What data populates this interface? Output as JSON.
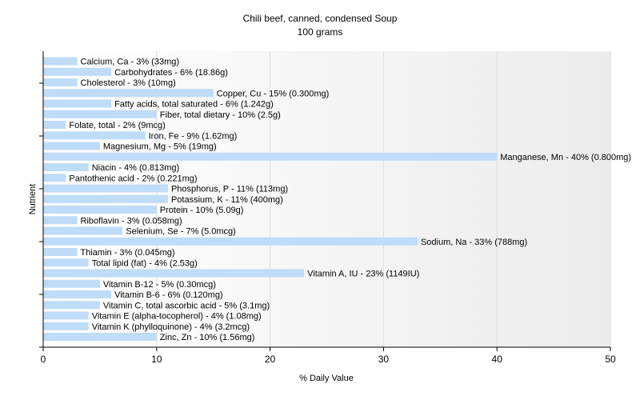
{
  "chart_data": {
    "type": "bar",
    "orientation": "horizontal",
    "title": "Chili beef, canned, condensed Soup",
    "subtitle": "100 grams",
    "xlabel": "% Daily Value",
    "ylabel": "Nutrient",
    "xlim": [
      0,
      50
    ],
    "xticks": [
      "0",
      "10",
      "20",
      "30",
      "40",
      "50"
    ],
    "grid": true,
    "bar_color": "#bfdcf8",
    "categories": [
      "Calcium, Ca",
      "Carbohydrates",
      "Cholesterol",
      "Copper, Cu",
      "Fatty acids, total saturated",
      "Fiber, total dietary",
      "Folate, total",
      "Iron, Fe",
      "Magnesium, Mg",
      "Manganese, Mn",
      "Niacin",
      "Pantothenic acid",
      "Phosphorus, P",
      "Potassium, K",
      "Protein",
      "Riboflavin",
      "Selenium, Se",
      "Sodium, Na",
      "Thiamin",
      "Total lipid (fat)",
      "Vitamin A, IU",
      "Vitamin B-12",
      "Vitamin B-6",
      "Vitamin C, total ascorbic acid",
      "Vitamin E (alpha-tocopherol)",
      "Vitamin K (phylloquinone)",
      "Zinc, Zn"
    ],
    "values": [
      3,
      6,
      3,
      15,
      6,
      10,
      2,
      9,
      5,
      40,
      4,
      2,
      11,
      11,
      10,
      3,
      7,
      33,
      3,
      4,
      23,
      5,
      6,
      5,
      4,
      4,
      10
    ],
    "labels": [
      "Calcium, Ca - 3% (33mg)",
      "Carbohydrates - 6% (18.86g)",
      "Cholesterol - 3% (10mg)",
      "Copper, Cu - 15% (0.300mg)",
      "Fatty acids, total saturated - 6% (1.242g)",
      "Fiber, total dietary - 10% (2.5g)",
      "Folate, total - 2% (9mcg)",
      "Iron, Fe - 9% (1.62mg)",
      "Magnesium, Mg - 5% (19mg)",
      "Manganese, Mn - 40% (0.800mg)",
      "Niacin - 4% (0.813mg)",
      "Pantothenic acid - 2% (0.221mg)",
      "Phosphorus, P - 11% (113mg)",
      "Potassium, K - 11% (400mg)",
      "Protein - 10% (5.09g)",
      "Riboflavin - 3% (0.058mg)",
      "Selenium, Se - 7% (5.0mcg)",
      "Sodium, Na - 33% (788mg)",
      "Thiamin - 3% (0.045mg)",
      "Total lipid (fat) - 4% (2.53g)",
      "Vitamin A, IU - 23% (1149IU)",
      "Vitamin B-12 - 5% (0.30mcg)",
      "Vitamin B-6 - 6% (0.120mg)",
      "Vitamin C, total ascorbic acid - 5% (3.1mg)",
      "Vitamin E (alpha-tocopherol) - 4% (1.08mg)",
      "Vitamin K (phylloquinone) - 4% (3.2mcg)",
      "Zinc, Zn - 10% (1.56mg)"
    ]
  }
}
